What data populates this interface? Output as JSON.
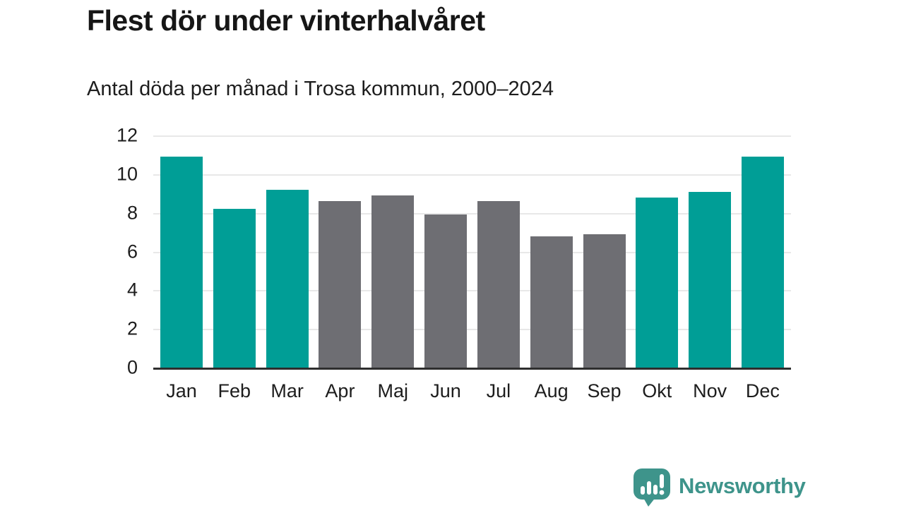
{
  "page": {
    "title": "Flest dör under vinterhalvåret",
    "subtitle": "Antal döda per månad i Trosa kommun, 2000–2024"
  },
  "chart_data": {
    "type": "bar",
    "title": "Flest dör under vinterhalvåret",
    "subtitle": "Antal döda per månad i Trosa kommun, 2000–2024",
    "categories": [
      "Jan",
      "Feb",
      "Mar",
      "Apr",
      "Maj",
      "Jun",
      "Jul",
      "Aug",
      "Sep",
      "Okt",
      "Nov",
      "Dec"
    ],
    "values": [
      10.9,
      8.2,
      9.2,
      8.6,
      8.9,
      7.9,
      8.6,
      6.8,
      6.9,
      8.8,
      9.1,
      10.9
    ],
    "series_note": "winter half-year months highlighted in teal, summer months gray",
    "bar_color_keys": [
      "highlight",
      "highlight",
      "highlight",
      "muted",
      "muted",
      "muted",
      "muted",
      "muted",
      "muted",
      "highlight",
      "highlight",
      "highlight"
    ],
    "xlabel": "",
    "ylabel": "",
    "ylim": [
      0,
      12
    ],
    "yticks": [
      0,
      2,
      4,
      6,
      8,
      10,
      12
    ],
    "grid": true,
    "legend": false,
    "colors": {
      "highlight": "#009e96",
      "muted": "#6e6e73",
      "gridline": "#e8e8e8",
      "axis": "#2e2e2e",
      "text": "#1d1d1d"
    }
  },
  "branding": {
    "logo_text": "Newsworthy",
    "logo_color": "#3e948b"
  }
}
